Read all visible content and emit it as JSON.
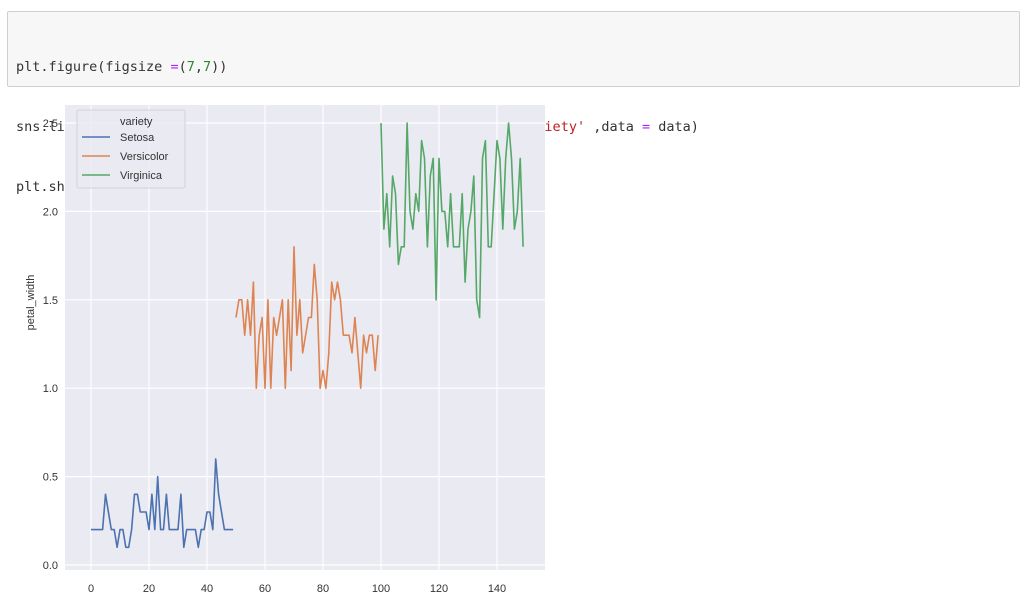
{
  "code_cell": {
    "lines": [
      "plt.figure(figsize =(7,7))",
      "sns.lineplot(x=range(0,data.shape[0]),y = 'petal_width',hue ='variety' ,data = data)",
      "plt.show()"
    ]
  },
  "colors": {
    "plot_background": "#eaeaf2",
    "grid": "#ffffff",
    "setosa": "#4c72b0",
    "versicolor": "#dd8452",
    "virginica": "#55a868"
  },
  "chart_data": {
    "type": "line",
    "title": "",
    "xlabel": "",
    "ylabel": "petal_width",
    "xlim": [
      -7.5,
      156.5
    ],
    "ylim": [
      -0.02,
      2.62
    ],
    "x_ticks": [
      0,
      20,
      40,
      60,
      80,
      100,
      120,
      140
    ],
    "y_ticks": [
      0.0,
      0.5,
      1.0,
      1.5,
      2.0,
      2.5
    ],
    "x_tick_labels": [
      "0",
      "20",
      "40",
      "60",
      "80",
      "100",
      "120",
      "140"
    ],
    "y_tick_labels": [
      "0.0",
      "0.5",
      "1.0",
      "1.5",
      "2.0",
      "2.5"
    ],
    "grid": true,
    "legend": {
      "title": "variety",
      "position": "upper left",
      "entries": [
        "Setosa",
        "Versicolor",
        "Virginica"
      ]
    },
    "series": [
      {
        "name": "Setosa",
        "x_start": 0,
        "values": [
          0.2,
          0.2,
          0.2,
          0.2,
          0.2,
          0.4,
          0.3,
          0.2,
          0.2,
          0.1,
          0.2,
          0.2,
          0.1,
          0.1,
          0.2,
          0.4,
          0.4,
          0.3,
          0.3,
          0.3,
          0.2,
          0.4,
          0.2,
          0.5,
          0.2,
          0.2,
          0.4,
          0.2,
          0.2,
          0.2,
          0.2,
          0.4,
          0.1,
          0.2,
          0.2,
          0.2,
          0.2,
          0.1,
          0.2,
          0.2,
          0.3,
          0.3,
          0.2,
          0.6,
          0.4,
          0.3,
          0.2,
          0.2,
          0.2,
          0.2
        ]
      },
      {
        "name": "Versicolor",
        "x_start": 50,
        "values": [
          1.4,
          1.5,
          1.5,
          1.3,
          1.5,
          1.3,
          1.6,
          1.0,
          1.3,
          1.4,
          1.0,
          1.5,
          1.0,
          1.4,
          1.3,
          1.4,
          1.5,
          1.0,
          1.5,
          1.1,
          1.8,
          1.3,
          1.5,
          1.2,
          1.3,
          1.4,
          1.4,
          1.7,
          1.5,
          1.0,
          1.1,
          1.0,
          1.2,
          1.6,
          1.5,
          1.6,
          1.5,
          1.3,
          1.3,
          1.3,
          1.2,
          1.4,
          1.2,
          1.0,
          1.3,
          1.2,
          1.3,
          1.3,
          1.1,
          1.3
        ]
      },
      {
        "name": "Virginica",
        "x_start": 100,
        "values": [
          2.5,
          1.9,
          2.1,
          1.8,
          2.2,
          2.1,
          1.7,
          1.8,
          1.8,
          2.5,
          2.0,
          1.9,
          2.1,
          2.0,
          2.4,
          2.3,
          1.8,
          2.2,
          2.3,
          1.5,
          2.3,
          2.0,
          2.0,
          1.8,
          2.1,
          1.8,
          1.8,
          1.8,
          2.1,
          1.6,
          1.9,
          2.0,
          2.2,
          1.5,
          1.4,
          2.3,
          2.4,
          1.8,
          1.8,
          2.1,
          2.4,
          2.3,
          1.9,
          2.3,
          2.5,
          2.3,
          1.9,
          2.0,
          2.3,
          1.8
        ]
      }
    ]
  }
}
